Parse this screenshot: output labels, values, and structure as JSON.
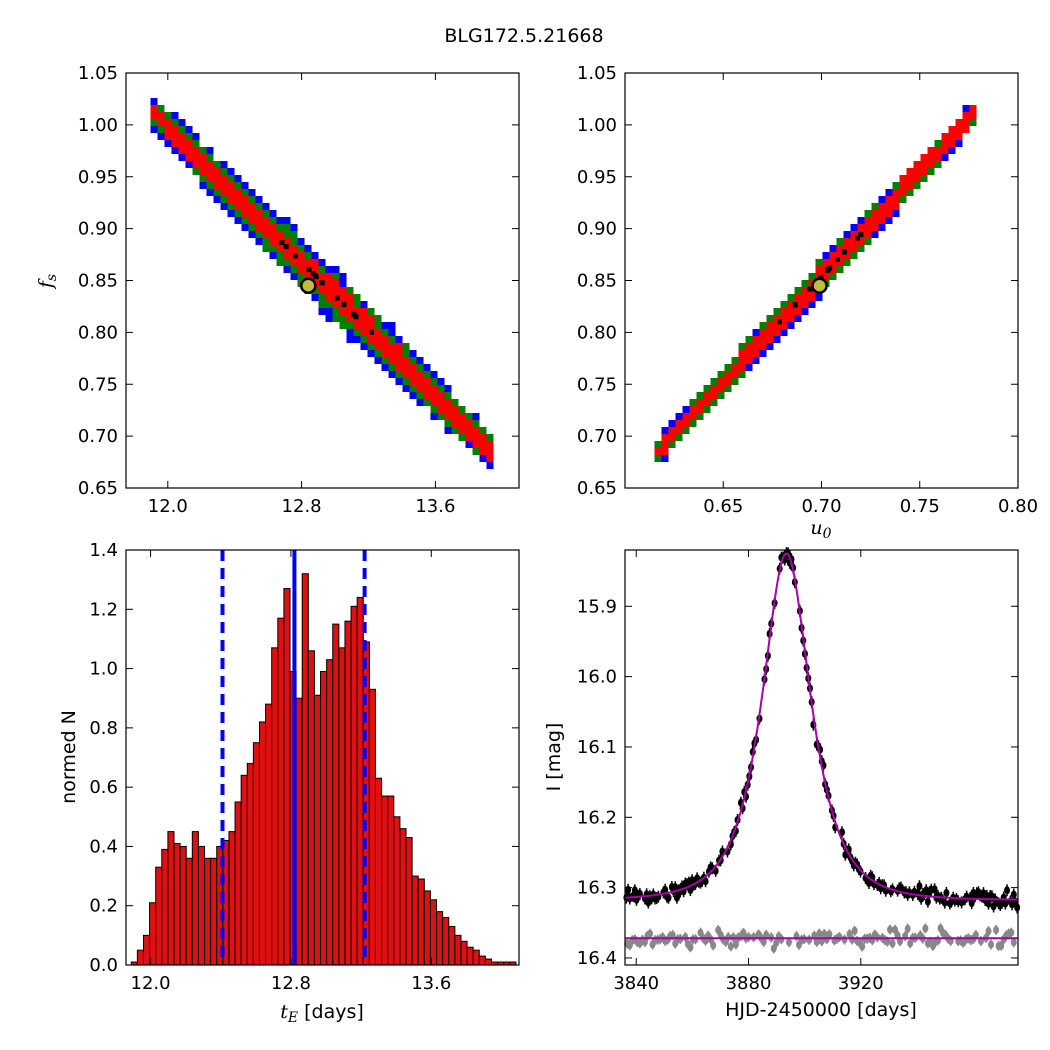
{
  "figure": {
    "title": "BLG172.5.21668"
  },
  "colors": {
    "sigma1": "#ff0000",
    "sigma2": "#008000",
    "sigma3": "#0000ff",
    "best_cell": "#000000",
    "marker_fill": "#bfbf3f",
    "hist_bar": "#dd1111",
    "hist_line": "#0000ff",
    "model_curve": "#aa00aa",
    "data_main": "#000000",
    "data_resid": "#888888"
  },
  "chart_data": [
    {
      "id": "tE_vs_fs",
      "type": "heatmap",
      "xlabel": "",
      "ylabel": "f_s",
      "xlim": [
        11.75,
        14.1
      ],
      "ylim": [
        0.65,
        1.05
      ],
      "xticks": [
        12.0,
        12.8,
        13.6
      ],
      "xtick_labels": [
        "12.0",
        "12.8",
        "13.6"
      ],
      "yticks": [
        0.65,
        0.7,
        0.75,
        0.8,
        0.85,
        0.9,
        0.95,
        1.0,
        1.05
      ],
      "ytick_labels": [
        "0.65",
        "0.70",
        "0.75",
        "0.80",
        "0.85",
        "0.90",
        "0.95",
        "1.00",
        "1.05"
      ],
      "grid": false,
      "band": {
        "x_start": 11.92,
        "x_end": 13.93,
        "y_start": 1.01,
        "y_end": 0.685,
        "sigma_half_width_fs": [
          0.008,
          0.015,
          0.021
        ]
      },
      "best_fit": {
        "x": 12.84,
        "y": 0.845
      }
    },
    {
      "id": "u0_vs_fs",
      "type": "heatmap",
      "xlabel": "u_0",
      "ylabel": "",
      "xlim": [
        0.6,
        0.8
      ],
      "ylim": [
        0.65,
        1.05
      ],
      "xticks": [
        0.65,
        0.7,
        0.75,
        0.8
      ],
      "xtick_labels": [
        "0.65",
        "0.70",
        "0.75",
        "0.80"
      ],
      "yticks": [
        0.65,
        0.7,
        0.75,
        0.8,
        0.85,
        0.9,
        0.95,
        1.0,
        1.05
      ],
      "ytick_labels": [
        "0.65",
        "0.70",
        "0.75",
        "0.80",
        "0.85",
        "0.90",
        "0.95",
        "1.00",
        "1.05"
      ],
      "grid": false,
      "band": {
        "x_start": 0.617,
        "x_end": 0.777,
        "y_start": 0.685,
        "y_end": 1.01,
        "sigma_half_width_fs": [
          0.005,
          0.009,
          0.012
        ]
      },
      "best_fit": {
        "x": 0.699,
        "y": 0.845
      }
    },
    {
      "id": "tE_histogram",
      "type": "bar",
      "xlabel": "t_E [days]",
      "ylabel": "normed N",
      "xlim": [
        11.86,
        14.1
      ],
      "ylim": [
        0.0,
        1.4
      ],
      "xticks": [
        12.0,
        12.8,
        13.6
      ],
      "xtick_labels": [
        "12.0",
        "12.8",
        "13.6"
      ],
      "yticks": [
        0.0,
        0.2,
        0.4,
        0.6,
        0.8,
        1.0,
        1.2,
        1.4
      ],
      "ytick_labels": [
        "0.0",
        "0.2",
        "0.4",
        "0.6",
        "0.8",
        "1.0",
        "1.2",
        "1.4"
      ],
      "bin_start": 11.89,
      "bin_width": 0.0348,
      "values": [
        0.01,
        0.05,
        0.1,
        0.21,
        0.33,
        0.39,
        0.45,
        0.41,
        0.4,
        0.36,
        0.45,
        0.4,
        0.36,
        0.36,
        0.4,
        0.42,
        0.45,
        0.55,
        0.64,
        0.68,
        0.75,
        0.82,
        0.88,
        1.07,
        1.17,
        1.27,
        0.99,
        0.9,
        1.32,
        1.06,
        0.91,
        0.99,
        1.03,
        1.15,
        1.07,
        1.16,
        1.21,
        1.24,
        1.09,
        0.93,
        0.63,
        0.57,
        0.57,
        0.5,
        0.46,
        0.43,
        0.3,
        0.29,
        0.25,
        0.22,
        0.18,
        0.16,
        0.13,
        0.1,
        0.08,
        0.06,
        0.05,
        0.03,
        0.02,
        0.01,
        0.01,
        0.01,
        0.01,
        0.0,
        0.0,
        0.0
      ],
      "median": 12.82,
      "lower": 12.41,
      "upper": 13.22
    },
    {
      "id": "light_curve",
      "type": "scatter",
      "xlabel": "HJD-2450000 [days]",
      "ylabel": "I [mag]",
      "xlim": [
        3836,
        3976
      ],
      "ylim": [
        16.41,
        15.82
      ],
      "xticks": [
        3840,
        3880,
        3920
      ],
      "xtick_labels": [
        "3840",
        "3880",
        "3920"
      ],
      "yticks": [
        15.9,
        16.0,
        16.1,
        16.2,
        16.3,
        16.4
      ],
      "ytick_labels": [
        "15.9",
        "16.0",
        "16.1",
        "16.2",
        "16.3",
        "16.4"
      ],
      "model": {
        "t0": 3893.5,
        "tE": 12.84,
        "u0": 0.699,
        "fs": 0.845,
        "baseline_mag": 16.318
      },
      "residual_offset_mag": 16.372
    }
  ]
}
